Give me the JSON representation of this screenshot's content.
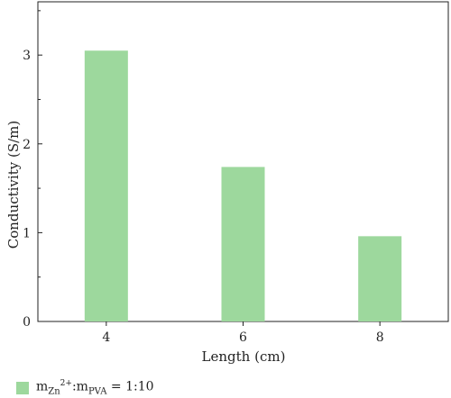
{
  "chart_data": {
    "type": "bar",
    "categories": [
      "4",
      "6",
      "8"
    ],
    "values": [
      3.05,
      1.74,
      0.96
    ],
    "xlabel": "Length (cm)",
    "ylabel": "Conductivity (S/m)",
    "ylim": [
      0,
      3.6
    ],
    "yticks": [
      "0",
      "1",
      "2",
      "3"
    ],
    "grid": false,
    "legend_position": "bottom-left",
    "bar_color": "#9dd89d",
    "series": [
      {
        "name": "mZn2+:mPVA = 1:10",
        "values": [
          3.05,
          1.74,
          0.96
        ]
      }
    ]
  },
  "legend": {
    "m1": "m",
    "sub1": "Zn",
    "sup1": "2+",
    "colon": ":m",
    "sub2": "PVA",
    "ratio": " = 1:10"
  }
}
